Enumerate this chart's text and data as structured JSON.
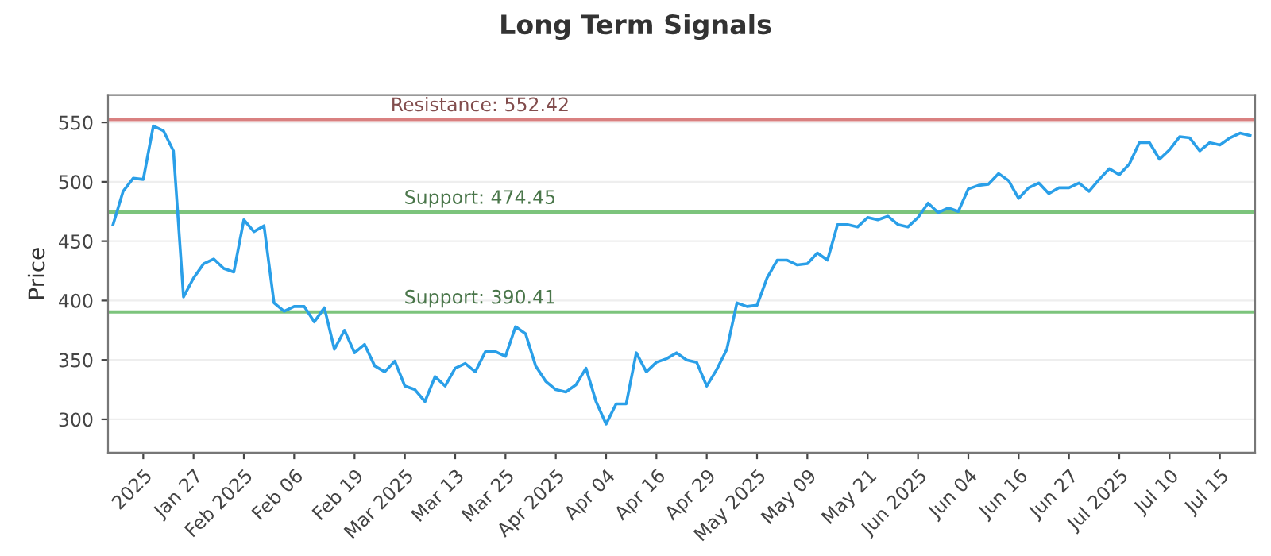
{
  "chart_data": {
    "type": "line",
    "title": "Long Term Signals",
    "ylabel": "Price",
    "categories": [
      null,
      null,
      null,
      "2025",
      null,
      null,
      null,
      null,
      "Jan 27",
      null,
      null,
      null,
      null,
      "Feb 2025",
      null,
      null,
      null,
      null,
      "Feb 06",
      null,
      null,
      null,
      null,
      null,
      "Feb 19",
      null,
      null,
      null,
      null,
      "Mar 2025",
      null,
      null,
      null,
      null,
      "Mar 13",
      null,
      null,
      null,
      null,
      "Mar 25",
      null,
      null,
      null,
      null,
      "Apr 2025",
      null,
      null,
      null,
      null,
      "Apr 04",
      null,
      null,
      null,
      null,
      "Apr 16",
      null,
      null,
      null,
      null,
      "Apr 29",
      null,
      null,
      null,
      null,
      "May 2025",
      null,
      null,
      null,
      null,
      "May 09",
      null,
      null,
      null,
      null,
      null,
      "May 21",
      null,
      null,
      null,
      null,
      "Jun 2025",
      null,
      null,
      null,
      null,
      "Jun 04",
      null,
      null,
      null,
      null,
      "Jun 16",
      null,
      null,
      null,
      null,
      "Jun 27",
      null,
      null,
      null,
      null,
      "Jul 2025",
      null,
      null,
      null,
      null,
      "Jul 10",
      null,
      null,
      null,
      null,
      "Jul 15",
      null,
      null,
      null
    ],
    "series": [
      {
        "color": "#2a9fe8",
        "values": [
          464,
          492,
          503,
          502,
          547,
          543,
          526,
          403,
          419,
          431,
          435,
          427,
          424,
          468,
          458,
          463,
          398,
          391,
          395,
          395,
          382,
          394,
          359,
          375,
          356,
          363,
          345,
          340,
          349,
          328,
          325,
          315,
          336,
          328,
          343,
          347,
          340,
          357,
          357,
          353,
          378,
          372,
          345,
          332,
          325,
          323,
          329,
          343,
          315,
          296,
          313,
          313,
          356,
          340,
          348,
          351,
          356,
          350,
          348,
          328,
          342,
          359,
          398,
          395,
          396,
          419,
          434,
          434,
          430,
          431,
          440,
          434,
          464,
          464,
          462,
          470,
          468,
          471,
          464,
          462,
          470,
          482,
          474,
          478,
          475,
          494,
          497,
          498,
          507,
          501,
          486,
          495,
          499,
          490,
          495,
          495,
          499,
          492,
          502,
          511,
          506,
          515,
          533,
          533,
          519,
          527,
          538,
          537,
          526,
          533,
          531,
          537,
          541,
          539
        ]
      }
    ],
    "ylim": [
      272,
      573
    ],
    "yticks": [
      300,
      350,
      400,
      450,
      500,
      550
    ],
    "grid": "y",
    "marker": "none",
    "line_style": "solid",
    "ref_lines": [
      {
        "axis": "y",
        "value": 552.42,
        "label": "Resistance: 552.42",
        "color": "#d98080"
      },
      {
        "axis": "y",
        "value": 474.45,
        "label": "Support: 474.45",
        "color": "#7cc47c"
      },
      {
        "axis": "y",
        "value": 390.41,
        "label": "Support: 390.41",
        "color": "#7cc47c"
      }
    ]
  }
}
